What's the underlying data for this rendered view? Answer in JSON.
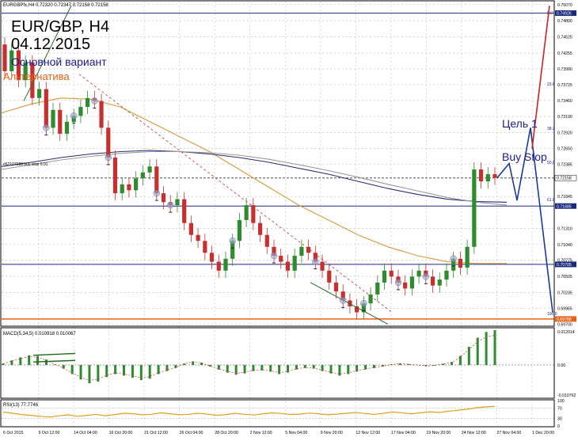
{
  "window": {
    "symbol_bar": "EURGBPfx,H4  0.72320 0.72347 0.72158 0.72158"
  },
  "annotations": {
    "title_line1": "EUR/GBP, H4",
    "title_line2": "04.12.2015",
    "main_scenario": "Основной вариант",
    "alternative": "Альтернатива",
    "target1": "Цель 1",
    "buy_stop": "Buy Stop",
    "order_label": "#62107088 buy stop 0.01"
  },
  "colors": {
    "main_scenario": "#1c1c8c",
    "alternative": "#e8631a",
    "bull_candle": "#2e8b2e",
    "bear_candle": "#c83030",
    "ma_slow": "#2a2a7a",
    "ma_mid": "#999999",
    "ma_fast": "#d99a3a",
    "forecast_main": "#1a3a9a",
    "forecast_alt": "#d42020",
    "macd_hist": "#2e8b2e",
    "rsi_line": "#e0a020",
    "highlight_price": "#1a2a7a",
    "order_line": "#e8631a"
  },
  "chart_data": [
    {
      "type": "line",
      "title": "EUR/GBP, H4",
      "price_axis": {
        "ylim": [
          0.6968,
          0.7512
        ],
        "ticks": [
          "0.75070",
          "0.74800",
          "0.74525",
          "0.74255",
          "0.73990",
          "0.73725",
          "0.73460",
          "0.73190",
          "0.72920",
          "0.72650",
          "0.72385",
          "0.71845",
          "0.71310",
          "0.71040",
          "0.70775",
          "0.70505",
          "0.70235",
          "0.69965",
          "0.69700"
        ],
        "highlighted": [
          "0.74926",
          "0.72158",
          "0.71685",
          "0.70705",
          "0.69788"
        ]
      },
      "time_axis": {
        "ticks": [
          "6 Oct 2015",
          "9 Oct 12:00",
          "14 Oct 04:00",
          "16 Oct 20:00",
          "21 Oct 12:00",
          "26 Oct 04:00",
          "28 Oct 20:00",
          "2 Nov 12:00",
          "5 Nov 04:00",
          "9 Nov 20:00",
          "12 Nov 12:00",
          "17 Nov 04:00",
          "19 Nov 20:00",
          "24 Nov 12:00",
          "27 Nov 04:00",
          "1 Dec 20:00"
        ]
      },
      "fib_labels": [
        "0.0",
        "23.6",
        "38.2",
        "50.0",
        "61.8",
        "100.0"
      ],
      "price_path": [
        [
          0.744,
          0.7395
        ],
        [
          0.7395,
          0.743
        ],
        [
          0.743,
          0.738
        ],
        [
          0.738,
          0.741
        ],
        [
          0.741,
          0.735
        ],
        [
          0.735,
          0.7365
        ],
        [
          0.7365,
          0.73
        ],
        [
          0.73,
          0.733
        ],
        [
          0.733,
          0.729
        ],
        [
          0.729,
          0.731
        ],
        [
          0.731,
          0.732
        ],
        [
          0.732,
          0.7335
        ],
        [
          0.7335,
          0.735
        ],
        [
          0.735,
          0.7345
        ],
        [
          0.7345,
          0.73
        ],
        [
          0.73,
          0.725
        ],
        [
          0.725,
          0.719
        ],
        [
          0.719,
          0.7205
        ],
        [
          0.7205,
          0.7195
        ],
        [
          0.7195,
          0.7215
        ],
        [
          0.7215,
          0.7225
        ],
        [
          0.7225,
          0.7235
        ],
        [
          0.7235,
          0.719
        ],
        [
          0.719,
          0.7175
        ],
        [
          0.7175,
          0.717
        ],
        [
          0.717,
          0.718
        ],
        [
          0.718,
          0.714
        ],
        [
          0.714,
          0.712
        ],
        [
          0.712,
          0.711
        ],
        [
          0.711,
          0.709
        ],
        [
          0.709,
          0.7075
        ],
        [
          0.7075,
          0.706
        ],
        [
          0.706,
          0.708
        ],
        [
          0.708,
          0.711
        ],
        [
          0.711,
          0.7145
        ],
        [
          0.7145,
          0.717
        ],
        [
          0.717,
          0.714
        ],
        [
          0.714,
          0.712
        ],
        [
          0.712,
          0.71
        ],
        [
          0.71,
          0.7085
        ],
        [
          0.7085,
          0.7075
        ],
        [
          0.7075,
          0.706
        ],
        [
          0.706,
          0.7085
        ],
        [
          0.7085,
          0.71
        ],
        [
          0.71,
          0.709
        ],
        [
          0.709,
          0.7075
        ],
        [
          0.7075,
          0.706
        ],
        [
          0.706,
          0.704
        ],
        [
          0.704,
          0.7025
        ],
        [
          0.7025,
          0.701
        ],
        [
          0.701,
          0.7
        ],
        [
          0.7,
          0.699
        ],
        [
          0.699,
          0.7005
        ],
        [
          0.7005,
          0.702
        ],
        [
          0.702,
          0.704
        ],
        [
          0.704,
          0.706
        ],
        [
          0.706,
          0.705
        ],
        [
          0.705,
          0.704
        ],
        [
          0.704,
          0.703
        ],
        [
          0.703,
          0.705
        ],
        [
          0.705,
          0.706
        ],
        [
          0.706,
          0.705
        ],
        [
          0.705,
          0.7035
        ],
        [
          0.7035,
          0.7045
        ],
        [
          0.7045,
          0.706
        ],
        [
          0.706,
          0.708
        ],
        [
          0.708,
          0.7065
        ],
        [
          0.7065,
          0.71
        ],
        [
          0.71,
          0.723
        ],
        [
          0.723,
          0.721
        ],
        [
          0.721,
          0.7222
        ],
        [
          0.7222,
          0.7216
        ]
      ],
      "moving_averages": [
        {
          "name": "",
          "color": "#d99a3a",
          "values": [
            0.7325,
            0.734,
            0.735,
            0.7348,
            0.7335,
            0.731,
            0.7285,
            0.726,
            0.723,
            0.72,
            0.717,
            0.7145,
            0.712,
            0.71,
            0.7085,
            0.7075,
            0.7072,
            0.7072
          ]
        },
        {
          "name": "",
          "color": "#2a2a7a",
          "values": [
            0.7235,
            0.7242,
            0.725,
            0.7256,
            0.726,
            0.7262,
            0.726,
            0.7256,
            0.725,
            0.7242,
            0.7232,
            0.7222,
            0.721,
            0.7198,
            0.7188,
            0.718,
            0.7176,
            0.7175
          ]
        },
        {
          "name": "",
          "color": "#999999",
          "values": [
            0.723,
            0.7238,
            0.7246,
            0.7252,
            0.7257,
            0.726,
            0.726,
            0.7258,
            0.7254,
            0.7247,
            0.7238,
            0.7228,
            0.7217,
            0.7205,
            0.7194,
            0.7183,
            0.7175,
            0.717
          ]
        }
      ],
      "forecast_main": [
        0.7216,
        0.724,
        0.7178,
        0.73,
        0.699
      ],
      "forecast_alt": [
        0.7265,
        0.7505
      ]
    },
    {
      "type": "bar",
      "title": "MACD(5,34,5) 0.010918 0.010067",
      "ylim": [
        -0.0107,
        0.012
      ],
      "ticks": [
        "0.012014",
        "0.00",
        "-0.010762"
      ],
      "values": [
        0.0005,
        0.0015,
        0.0025,
        0.0032,
        0.003,
        0.0018,
        0.0002,
        -0.0012,
        -0.003,
        -0.0048,
        -0.006,
        -0.0055,
        -0.004,
        -0.003,
        -0.0035,
        -0.0042,
        -0.005,
        -0.0045,
        -0.003,
        -0.002,
        -0.001,
        0.0005,
        0.0012,
        0.0008,
        -0.0005,
        -0.0015,
        -0.0025,
        -0.0032,
        -0.0028,
        -0.002,
        -0.0018,
        -0.0022,
        -0.003,
        -0.0025,
        -0.0015,
        -0.001,
        -0.0012,
        -0.002,
        -0.0028,
        -0.0035,
        -0.003,
        -0.0022,
        -0.0015,
        -0.001,
        -0.0005,
        0.0002,
        0.0005,
        0.0003,
        0.0,
        -0.0004,
        -0.0002,
        0.0004,
        0.001,
        0.003,
        0.006,
        0.009,
        0.0109,
        0.0115
      ]
    },
    {
      "type": "line",
      "title": "RSI(13) 77.7746",
      "ylim": [
        0,
        100
      ],
      "ticks": [
        "100",
        "70",
        "30",
        "0"
      ],
      "values": [
        55,
        50,
        45,
        42,
        38,
        35,
        40,
        44,
        38,
        42,
        46,
        40,
        45,
        50,
        48,
        44,
        46,
        52,
        48,
        44,
        46,
        50,
        47,
        42,
        45,
        50,
        46,
        43,
        48,
        52,
        49,
        45,
        47,
        51,
        48,
        44,
        47,
        50,
        53,
        49,
        46,
        50,
        55,
        52,
        48,
        52,
        56,
        53,
        58,
        62,
        66,
        72,
        75,
        77.77
      ]
    }
  ]
}
